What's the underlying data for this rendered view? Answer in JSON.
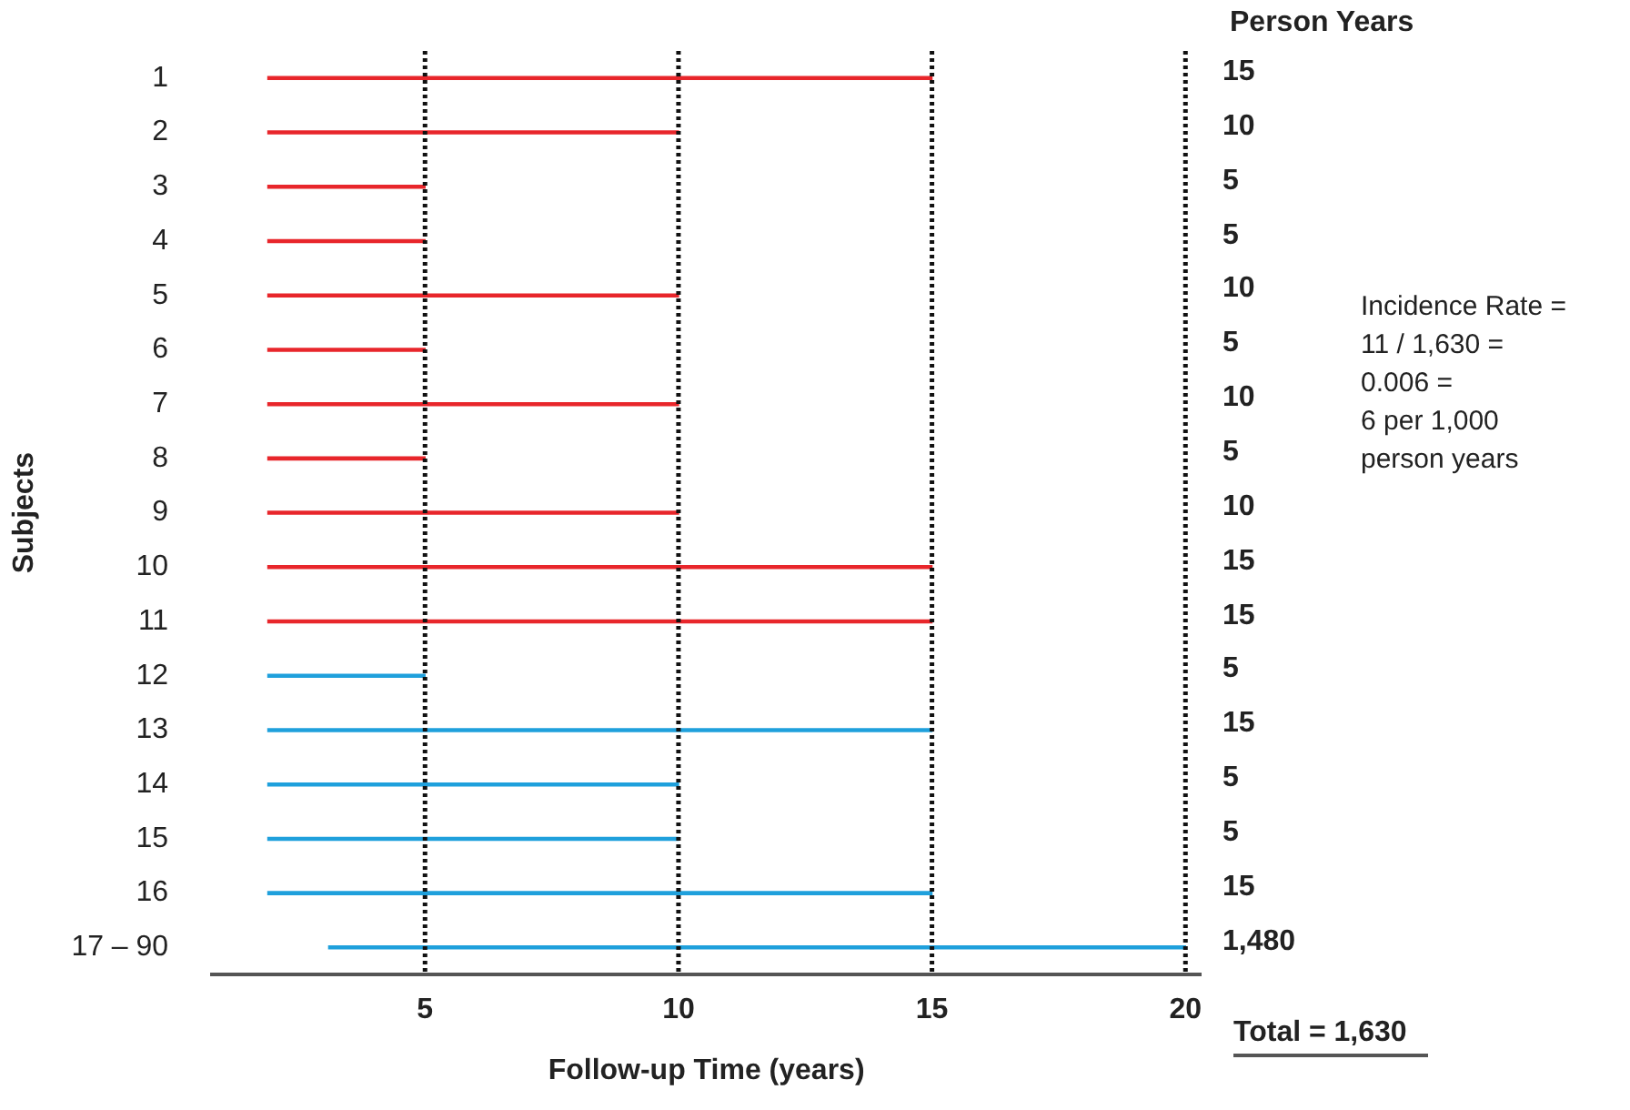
{
  "chart_data": {
    "type": "bar",
    "orientation": "horizontal",
    "xlabel": "Follow-up Time (years)",
    "ylabel": "Subjects",
    "categories": [
      "1",
      "2",
      "3",
      "4",
      "5",
      "6",
      "7",
      "8",
      "9",
      "10",
      "11",
      "12",
      "13",
      "14",
      "15",
      "16",
      "17 – 90"
    ],
    "base": [
      1.9,
      1.9,
      1.9,
      1.9,
      1.9,
      1.9,
      1.9,
      1.9,
      1.9,
      1.9,
      1.9,
      1.9,
      1.9,
      1.9,
      1.9,
      1.9,
      3.1
    ],
    "values": [
      13.1,
      8.1,
      3.1,
      3.1,
      8.1,
      3.1,
      8.1,
      3.1,
      8.1,
      13.1,
      13.1,
      3.1,
      13.1,
      8.1,
      8.1,
      13.1,
      16.9
    ],
    "colors": [
      "#e8262b",
      "#e8262b",
      "#e8262b",
      "#e8262b",
      "#e8262b",
      "#e8262b",
      "#e8262b",
      "#e8262b",
      "#e8262b",
      "#e8262b",
      "#e8262b",
      "#1fa0dc",
      "#1fa0dc",
      "#1fa0dc",
      "#1fa0dc",
      "#1fa0dc",
      "#1fa0dc"
    ],
    "xlim": [
      0.8,
      20.3
    ],
    "xticks": [
      5,
      10,
      15,
      20
    ],
    "ref_lines": [
      {
        "axis": "x",
        "value": 5,
        "color": "#111111",
        "line_style": "dotted"
      },
      {
        "axis": "x",
        "value": 10,
        "color": "#111111",
        "line_style": "dotted"
      },
      {
        "axis": "x",
        "value": 15,
        "color": "#111111",
        "line_style": "dotted"
      },
      {
        "axis": "x",
        "value": 20,
        "color": "#111111",
        "line_style": "dotted"
      }
    ],
    "annotations": [
      "Person Years",
      "15",
      "10",
      "5",
      "5",
      "10",
      "5",
      "10",
      "5",
      "10",
      "15",
      "15",
      "5",
      "15",
      "5",
      "5",
      "15",
      "1,480",
      "Incidence Rate =\n11 / 1,630 =\n0.006 =\n6 per 1,000\nperson years",
      "Total = 1,630"
    ]
  }
}
